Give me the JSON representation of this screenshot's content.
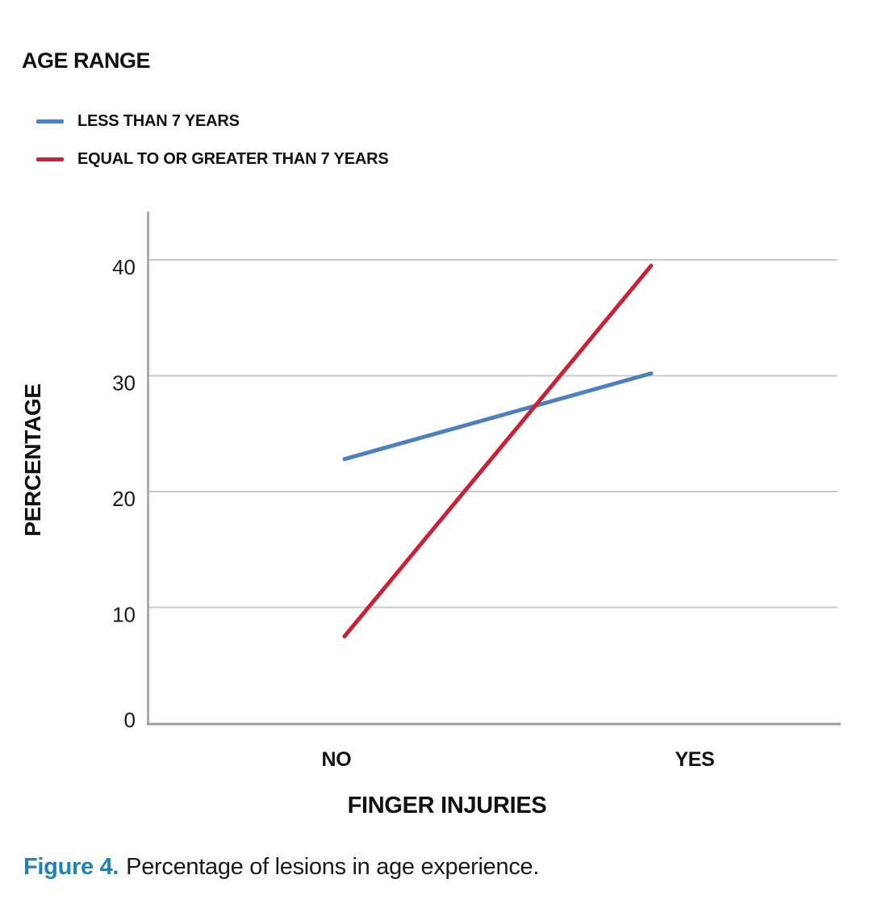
{
  "chart_data": {
    "type": "line",
    "legend_title": "AGE RANGE",
    "categories": [
      "NO",
      "YES"
    ],
    "series": [
      {
        "name": "LESS THAN 7 YEARS",
        "color": "#4D80BF",
        "values": [
          22.8,
          30.2
        ]
      },
      {
        "name": "EQUAL TO OR GREATER THAN 7 YEARS",
        "color": "#C82237",
        "values": [
          7.5,
          39.5
        ]
      }
    ],
    "xlabel": "FINGER INJURIES",
    "ylabel": "PERCENTAGE",
    "yticks": [
      0,
      10,
      20,
      30,
      40
    ],
    "ylim": [
      0,
      44
    ],
    "grid": true,
    "legend_position": "top-left",
    "colors": {
      "gridline": "#C9C9C9",
      "axis": "#9B9B9B",
      "tick_text": "#1A1A1A"
    }
  },
  "caption": {
    "prefix": "Figure 4.",
    "text": "Percentage of lesions in age experience.",
    "prefix_color": "#2282B4"
  }
}
